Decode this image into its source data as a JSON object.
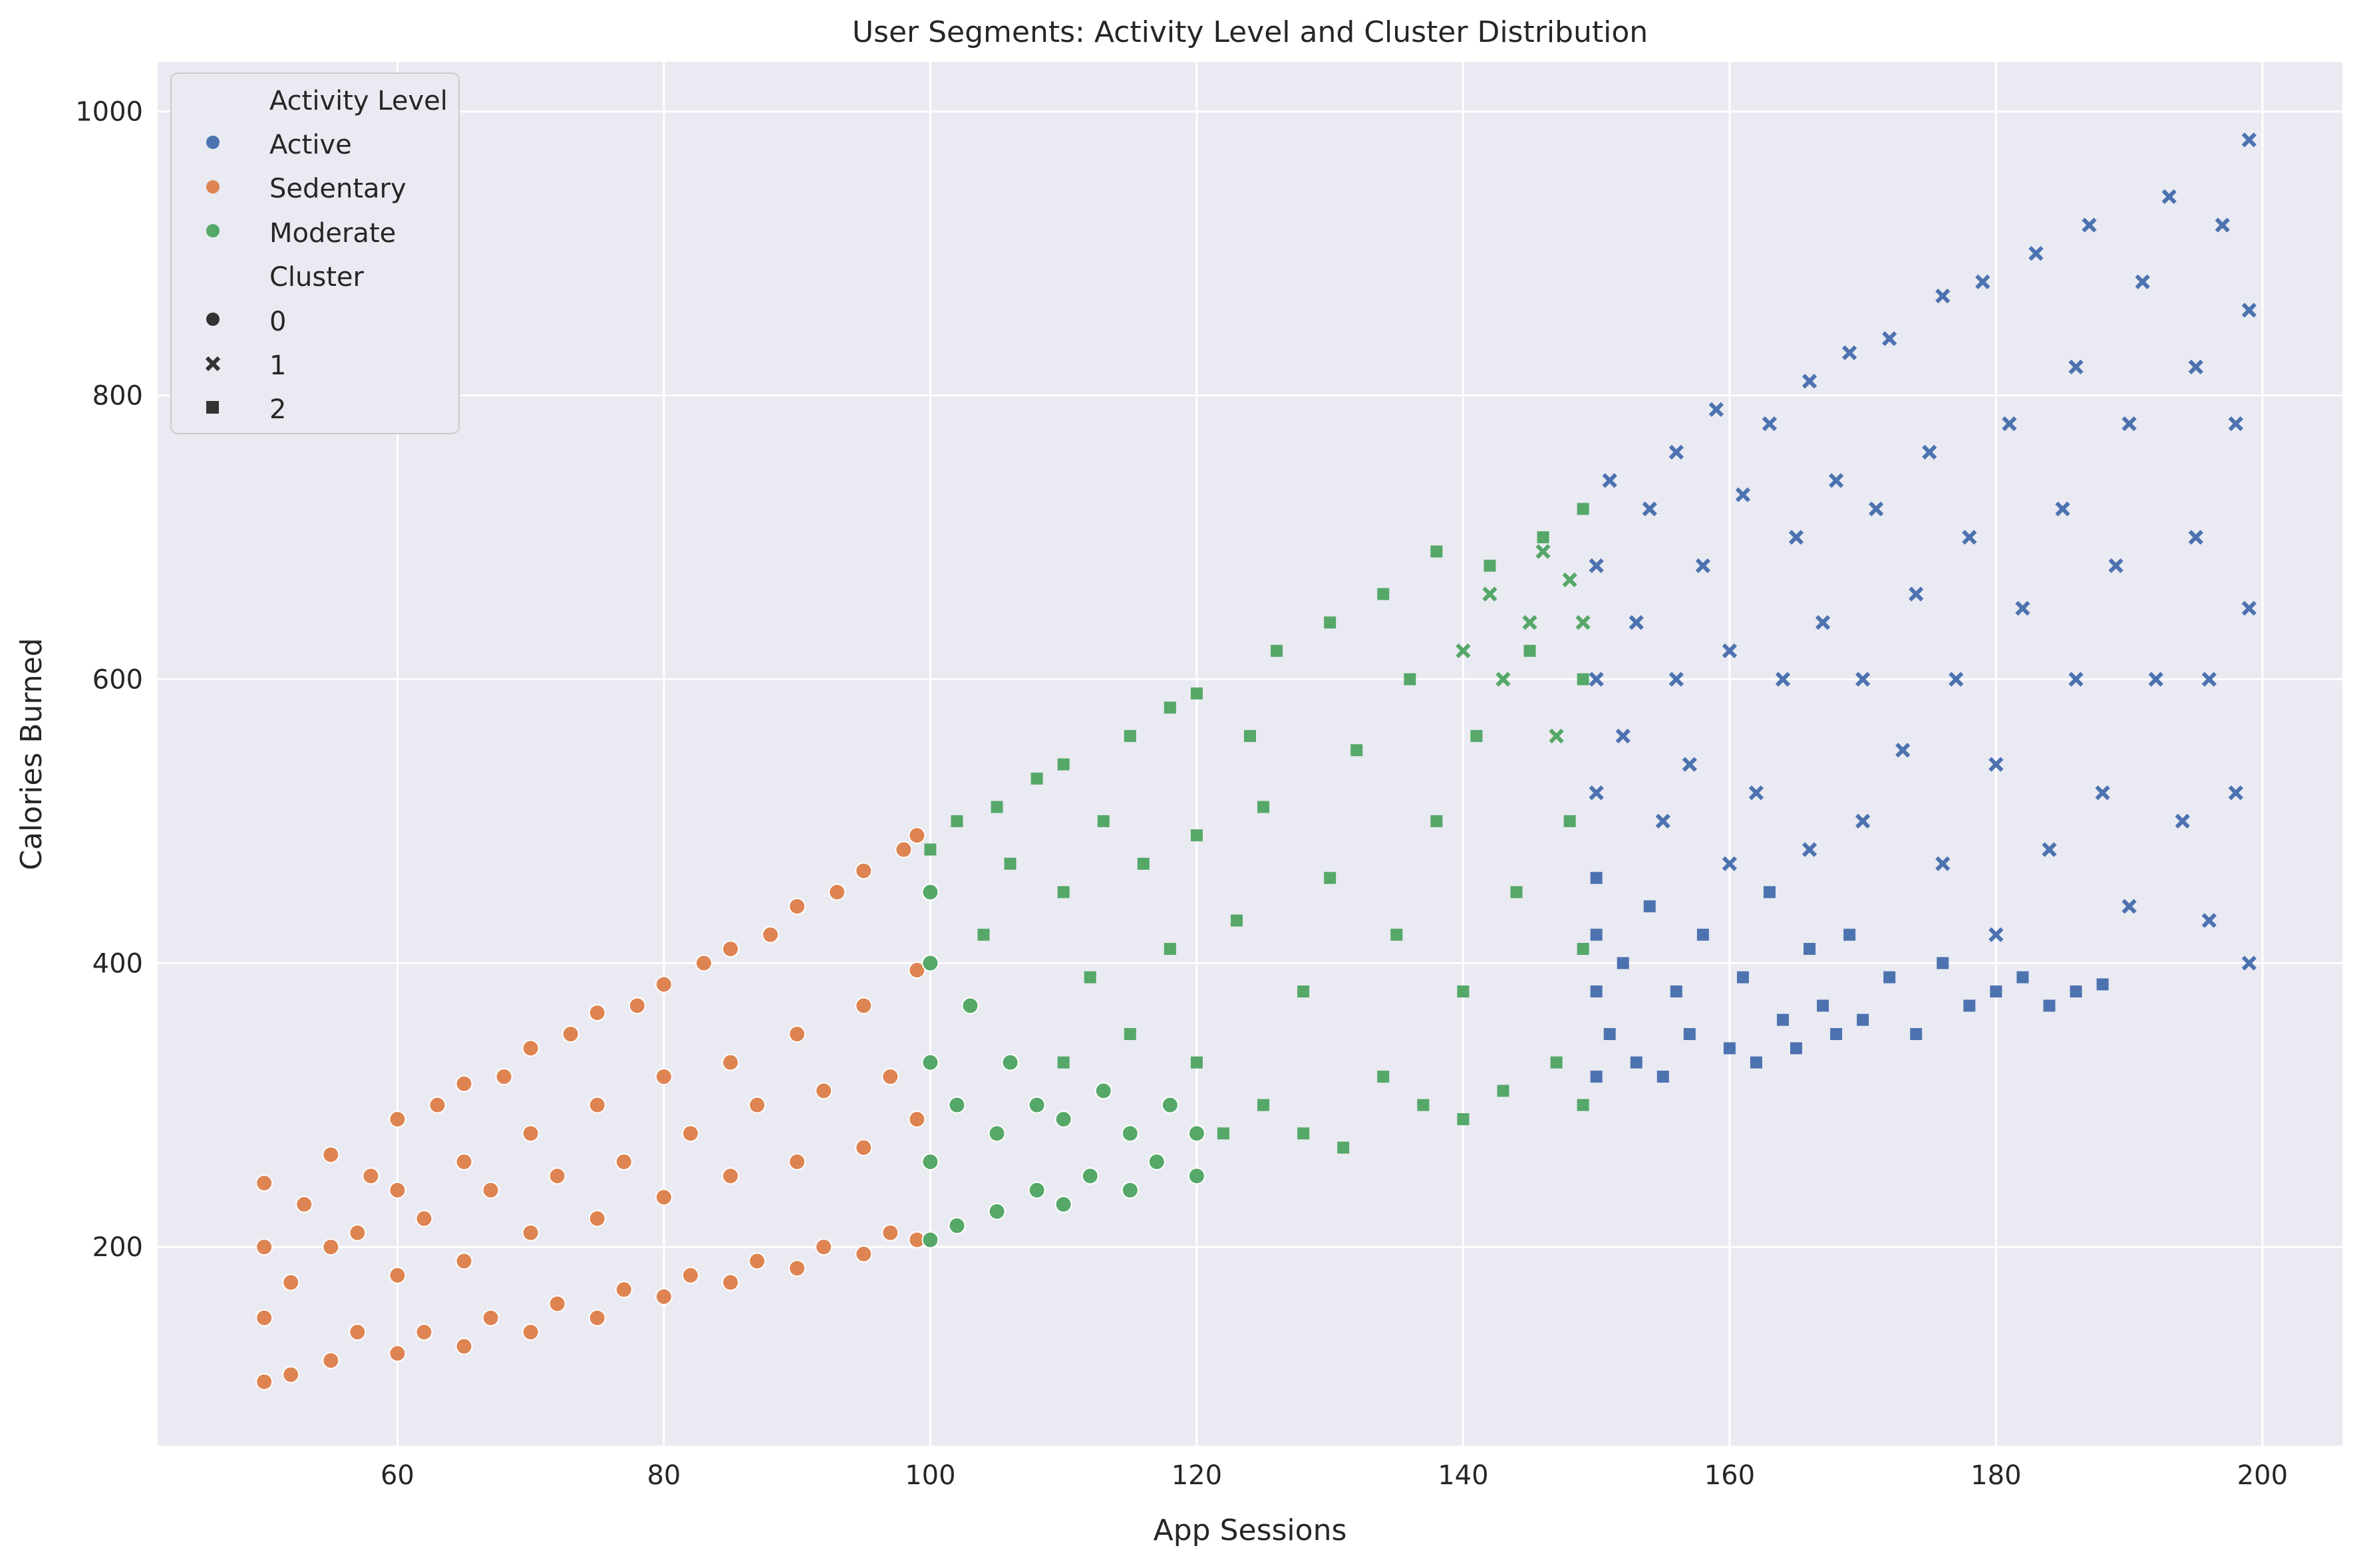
{
  "chart_data": {
    "type": "scatter",
    "title": "User Segments: Activity Level and Cluster Distribution",
    "xlabel": "App Sessions",
    "ylabel": "Calories Burned",
    "xlim": [
      42,
      206
    ],
    "ylim": [
      60,
      1035
    ],
    "xticks": [
      60,
      80,
      100,
      120,
      140,
      160,
      180,
      200
    ],
    "yticks": [
      200,
      400,
      600,
      800,
      1000
    ],
    "grid": true,
    "legend": {
      "placement": "top-left",
      "hue_title": "Activity Level",
      "style_title": "Cluster",
      "hue_entries": [
        {
          "label": "Active",
          "color": "#4c72b0"
        },
        {
          "label": "Sedentary",
          "color": "#dd8452"
        },
        {
          "label": "Moderate",
          "color": "#55a868"
        }
      ],
      "style_entries": [
        {
          "label": "0",
          "marker": "circle"
        },
        {
          "label": "1",
          "marker": "x"
        },
        {
          "label": "2",
          "marker": "square"
        }
      ]
    },
    "series": [
      {
        "name": "Sedentary",
        "color": "#dd8452",
        "marker": "circle",
        "cluster": "0",
        "points": [
          [
            50,
            105
          ],
          [
            50,
            150
          ],
          [
            50,
            200
          ],
          [
            50,
            245
          ],
          [
            52,
            110
          ],
          [
            52,
            175
          ],
          [
            53,
            230
          ],
          [
            55,
            120
          ],
          [
            55,
            200
          ],
          [
            55,
            265
          ],
          [
            57,
            140
          ],
          [
            57,
            210
          ],
          [
            58,
            250
          ],
          [
            60,
            125
          ],
          [
            60,
            180
          ],
          [
            60,
            240
          ],
          [
            60,
            290
          ],
          [
            62,
            140
          ],
          [
            62,
            220
          ],
          [
            63,
            300
          ],
          [
            65,
            130
          ],
          [
            65,
            190
          ],
          [
            65,
            260
          ],
          [
            65,
            315
          ],
          [
            67,
            150
          ],
          [
            67,
            240
          ],
          [
            68,
            320
          ],
          [
            70,
            140
          ],
          [
            70,
            210
          ],
          [
            70,
            280
          ],
          [
            70,
            340
          ],
          [
            72,
            160
          ],
          [
            72,
            250
          ],
          [
            73,
            350
          ],
          [
            75,
            150
          ],
          [
            75,
            220
          ],
          [
            75,
            300
          ],
          [
            75,
            365
          ],
          [
            77,
            170
          ],
          [
            77,
            260
          ],
          [
            78,
            370
          ],
          [
            80,
            165
          ],
          [
            80,
            235
          ],
          [
            80,
            320
          ],
          [
            80,
            385
          ],
          [
            82,
            180
          ],
          [
            82,
            280
          ],
          [
            83,
            400
          ],
          [
            85,
            175
          ],
          [
            85,
            250
          ],
          [
            85,
            330
          ],
          [
            85,
            410
          ],
          [
            87,
            190
          ],
          [
            87,
            300
          ],
          [
            88,
            420
          ],
          [
            90,
            185
          ],
          [
            90,
            260
          ],
          [
            90,
            350
          ],
          [
            90,
            440
          ],
          [
            92,
            200
          ],
          [
            92,
            310
          ],
          [
            93,
            450
          ],
          [
            95,
            195
          ],
          [
            95,
            270
          ],
          [
            95,
            370
          ],
          [
            95,
            465
          ],
          [
            97,
            210
          ],
          [
            97,
            320
          ],
          [
            98,
            480
          ],
          [
            99,
            205
          ],
          [
            99,
            290
          ],
          [
            99,
            395
          ],
          [
            99,
            490
          ]
        ]
      },
      {
        "name": "Moderate",
        "color": "#55a868",
        "marker": "circle",
        "cluster": "0",
        "points": [
          [
            100,
            205
          ],
          [
            100,
            260
          ],
          [
            100,
            330
          ],
          [
            100,
            400
          ],
          [
            100,
            450
          ],
          [
            102,
            215
          ],
          [
            102,
            300
          ],
          [
            103,
            370
          ],
          [
            105,
            225
          ],
          [
            105,
            280
          ],
          [
            106,
            330
          ],
          [
            108,
            240
          ],
          [
            108,
            300
          ],
          [
            110,
            230
          ],
          [
            110,
            290
          ],
          [
            112,
            250
          ],
          [
            113,
            310
          ],
          [
            115,
            240
          ],
          [
            115,
            280
          ],
          [
            117,
            260
          ],
          [
            118,
            300
          ],
          [
            120,
            250
          ],
          [
            120,
            280
          ]
        ]
      },
      {
        "name": "Moderate",
        "color": "#55a868",
        "marker": "square",
        "cluster": "2",
        "points": [
          [
            100,
            480
          ],
          [
            102,
            500
          ],
          [
            104,
            420
          ],
          [
            105,
            510
          ],
          [
            106,
            470
          ],
          [
            108,
            530
          ],
          [
            110,
            330
          ],
          [
            110,
            450
          ],
          [
            110,
            540
          ],
          [
            112,
            390
          ],
          [
            113,
            500
          ],
          [
            115,
            560
          ],
          [
            115,
            350
          ],
          [
            116,
            470
          ],
          [
            118,
            410
          ],
          [
            118,
            580
          ],
          [
            120,
            330
          ],
          [
            120,
            490
          ],
          [
            120,
            590
          ],
          [
            122,
            280
          ],
          [
            123,
            430
          ],
          [
            124,
            560
          ],
          [
            125,
            300
          ],
          [
            125,
            510
          ],
          [
            126,
            620
          ],
          [
            128,
            280
          ],
          [
            128,
            380
          ],
          [
            130,
            460
          ],
          [
            130,
            640
          ],
          [
            131,
            270
          ],
          [
            132,
            550
          ],
          [
            134,
            320
          ],
          [
            134,
            660
          ],
          [
            135,
            420
          ],
          [
            136,
            600
          ],
          [
            137,
            300
          ],
          [
            138,
            500
          ],
          [
            138,
            690
          ],
          [
            140,
            290
          ],
          [
            140,
            380
          ],
          [
            141,
            560
          ],
          [
            142,
            680
          ],
          [
            143,
            310
          ],
          [
            144,
            450
          ],
          [
            145,
            620
          ],
          [
            146,
            700
          ],
          [
            147,
            330
          ],
          [
            148,
            500
          ],
          [
            149,
            720
          ],
          [
            149,
            300
          ],
          [
            149,
            410
          ],
          [
            149,
            600
          ]
        ]
      },
      {
        "name": "Moderate",
        "color": "#55a868",
        "marker": "x",
        "cluster": "1",
        "points": [
          [
            140,
            620
          ],
          [
            142,
            660
          ],
          [
            143,
            600
          ],
          [
            145,
            640
          ],
          [
            146,
            690
          ],
          [
            147,
            560
          ],
          [
            148,
            670
          ],
          [
            149,
            640
          ]
        ]
      },
      {
        "name": "Active",
        "color": "#4c72b0",
        "marker": "square",
        "cluster": "2",
        "points": [
          [
            150,
            320
          ],
          [
            150,
            380
          ],
          [
            150,
            420
          ],
          [
            150,
            460
          ],
          [
            151,
            350
          ],
          [
            152,
            400
          ],
          [
            153,
            330
          ],
          [
            154,
            440
          ],
          [
            155,
            320
          ],
          [
            156,
            380
          ],
          [
            157,
            350
          ],
          [
            158,
            420
          ],
          [
            160,
            340
          ],
          [
            161,
            390
          ],
          [
            162,
            330
          ],
          [
            163,
            450
          ],
          [
            164,
            360
          ],
          [
            165,
            340
          ],
          [
            166,
            410
          ],
          [
            167,
            370
          ],
          [
            168,
            350
          ],
          [
            169,
            420
          ],
          [
            170,
            360
          ],
          [
            172,
            390
          ],
          [
            174,
            350
          ],
          [
            176,
            400
          ],
          [
            178,
            370
          ],
          [
            180,
            380
          ],
          [
            182,
            390
          ],
          [
            184,
            370
          ],
          [
            186,
            380
          ],
          [
            188,
            385
          ]
        ]
      },
      {
        "name": "Active",
        "color": "#4c72b0",
        "marker": "x",
        "cluster": "1",
        "points": [
          [
            150,
            520
          ],
          [
            150,
            600
          ],
          [
            150,
            680
          ],
          [
            151,
            740
          ],
          [
            152,
            560
          ],
          [
            153,
            640
          ],
          [
            154,
            720
          ],
          [
            155,
            500
          ],
          [
            156,
            600
          ],
          [
            156,
            760
          ],
          [
            157,
            540
          ],
          [
            158,
            680
          ],
          [
            159,
            790
          ],
          [
            160,
            470
          ],
          [
            160,
            620
          ],
          [
            161,
            730
          ],
          [
            162,
            520
          ],
          [
            163,
            780
          ],
          [
            164,
            600
          ],
          [
            165,
            700
          ],
          [
            166,
            480
          ],
          [
            166,
            810
          ],
          [
            167,
            640
          ],
          [
            168,
            740
          ],
          [
            169,
            830
          ],
          [
            170,
            500
          ],
          [
            170,
            600
          ],
          [
            171,
            720
          ],
          [
            172,
            840
          ],
          [
            173,
            550
          ],
          [
            174,
            660
          ],
          [
            175,
            760
          ],
          [
            176,
            870
          ],
          [
            176,
            470
          ],
          [
            177,
            600
          ],
          [
            178,
            700
          ],
          [
            179,
            880
          ],
          [
            180,
            420
          ],
          [
            180,
            540
          ],
          [
            181,
            780
          ],
          [
            182,
            650
          ],
          [
            183,
            900
          ],
          [
            184,
            480
          ],
          [
            185,
            720
          ],
          [
            186,
            820
          ],
          [
            186,
            600
          ],
          [
            187,
            920
          ],
          [
            188,
            520
          ],
          [
            189,
            680
          ],
          [
            190,
            780
          ],
          [
            190,
            440
          ],
          [
            191,
            880
          ],
          [
            192,
            600
          ],
          [
            193,
            940
          ],
          [
            194,
            500
          ],
          [
            195,
            700
          ],
          [
            195,
            820
          ],
          [
            196,
            430
          ],
          [
            196,
            600
          ],
          [
            197,
            920
          ],
          [
            198,
            520
          ],
          [
            198,
            780
          ],
          [
            199,
            980
          ],
          [
            199,
            400
          ],
          [
            199,
            650
          ],
          [
            199,
            860
          ]
        ]
      }
    ]
  }
}
